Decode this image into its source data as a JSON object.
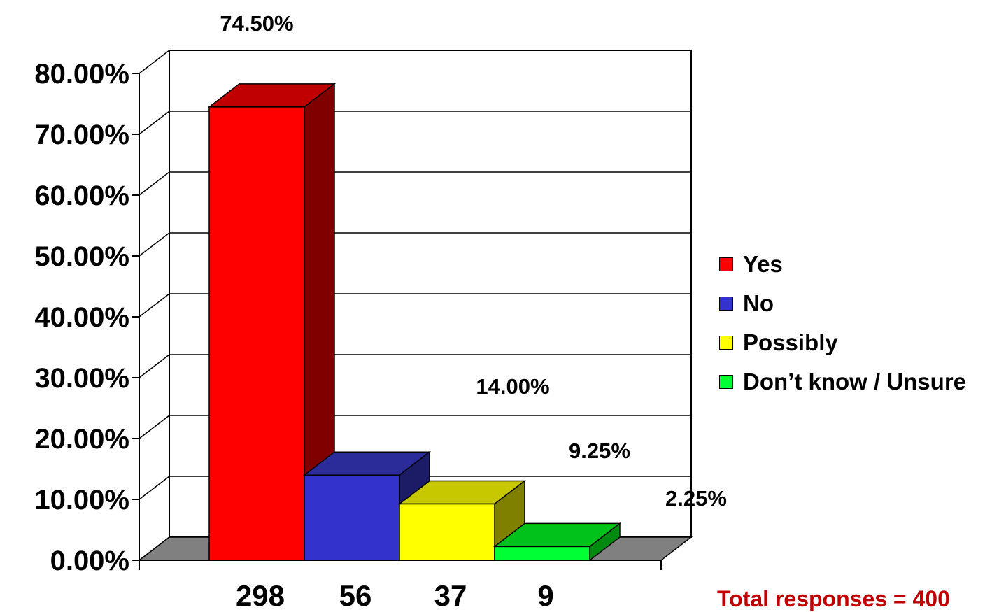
{
  "chart_data": {
    "type": "bar",
    "style": "3d",
    "categories": [
      "298",
      "56",
      "37",
      "9"
    ],
    "values": [
      74.5,
      14.0,
      9.25,
      2.25
    ],
    "value_labels": [
      "74.50%",
      "14.00%",
      "9.25%",
      "2.25%"
    ],
    "series_names": [
      "Yes",
      "No",
      "Possibly",
      "Don’t know / Unsure"
    ],
    "ylim": [
      0,
      80
    ],
    "yticks": [
      "0.00%",
      "10.00%",
      "20.00%",
      "30.00%",
      "40.00%",
      "50.00%",
      "60.00%",
      "70.00%",
      "80.00%"
    ],
    "grid": true,
    "legend_position": "right",
    "colors": {
      "front": [
        "#ff0000",
        "#3333cc",
        "#ffff00",
        "#00ff33"
      ],
      "top": [
        "#c00000",
        "#2b2b99",
        "#c8c800",
        "#00c21a"
      ],
      "side": [
        "#800000",
        "#1c1c66",
        "#808000",
        "#008a10"
      ],
      "floor": "#808080"
    }
  },
  "legend": [
    {
      "label": "Yes",
      "color": "#ff0000"
    },
    {
      "label": "No",
      "color": "#3333cc"
    },
    {
      "label": "Possibly",
      "color": "#ffff00"
    },
    {
      "label": "Don’t know / Unsure",
      "color": "#00ff33"
    }
  ],
  "annotation": {
    "total": "Total responses = 400"
  }
}
